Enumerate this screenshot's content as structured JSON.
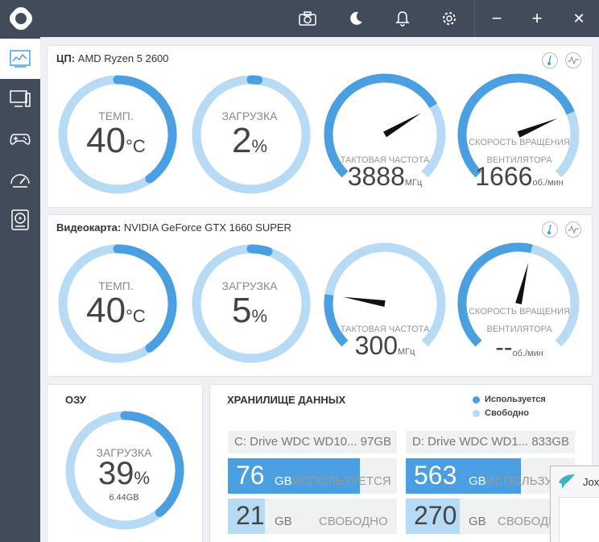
{
  "titlebar": {
    "icons": [
      "camera-icon",
      "moon-icon",
      "bell-icon",
      "gear-icon"
    ],
    "minimize": "−",
    "maximize": "+",
    "close": "✕"
  },
  "sidebar": {
    "items": [
      "dashboard-icon",
      "computer-icon",
      "gamepad-icon",
      "speedometer-icon",
      "disk-icon"
    ]
  },
  "cpu": {
    "title_prefix": "ЦП:",
    "title_name": "AMD Ryzen 5 2600",
    "temp": {
      "label": "ТЕМП.",
      "value": "40",
      "unit": "°C",
      "fraction": 0.4
    },
    "load": {
      "label": "ЗАГРУЗКА",
      "value": "2",
      "unit": "%",
      "fraction": 0.02
    },
    "clock": {
      "label": "ТАКТОВАЯ ЧАСТОТА",
      "value": "3888",
      "unit": "МГц",
      "fraction": 0.72
    },
    "fan": {
      "label_1": "СКОРОСТЬ ВРАЩЕНИЯ",
      "label_2": "ВЕНТИЛЯТОРА",
      "value": "1666",
      "unit": "об./мин",
      "fraction": 0.75
    }
  },
  "gpu": {
    "title_prefix": "Видеокарта:",
    "title_name": "NVIDIA GeForce GTX 1660 SUPER",
    "temp": {
      "label": "ТЕМП.",
      "value": "40",
      "unit": "°C",
      "fraction": 0.4
    },
    "load": {
      "label": "ЗАГРУЗКА",
      "value": "5",
      "unit": "%",
      "fraction": 0.05
    },
    "clock": {
      "label": "ТАКТОВАЯ ЧАСТОТА",
      "value": "300",
      "unit": "МГц",
      "fraction": 0.2
    },
    "fan": {
      "label_1": "СКОРОСТЬ ВРАЩЕНИЯ",
      "label_2": "ВЕНТИЛЯТОРА",
      "value": "--",
      "unit": "об./мин",
      "fraction": 0.55
    }
  },
  "ram": {
    "title": "ОЗУ",
    "load": {
      "label": "ЗАГРУЗКА",
      "value": "39",
      "unit": "%",
      "sub": "6.44GB",
      "fraction": 0.39
    }
  },
  "storage": {
    "title": "ХРАНИЛИЩЕ ДАННЫХ",
    "legend_used": "Используется",
    "legend_free": "Свободно",
    "drives": [
      {
        "name": "C: Drive WDC WD10... 97GB",
        "used": "76",
        "used_unit": "GB",
        "used_label": "ИСПОЛЬЗУЕТСЯ",
        "free": "21",
        "free_unit": "GB",
        "free_label": "СВОБОДНО",
        "used_fraction": 0.78,
        "free_fraction": 0.22
      },
      {
        "name": "D: Drive WDC WD1... 833GB",
        "used": "563",
        "used_unit": "GB",
        "used_label": "ИСПОЛЬЗУЕТСЯ",
        "free": "270",
        "free_unit": "GB",
        "free_label": "СВОБОДНО",
        "used_fraction": 0.68,
        "free_fraction": 0.32
      }
    ]
  },
  "colors": {
    "accent": "#4a9fe0",
    "track": "#b7dbf5",
    "titlebar": "#414b5a"
  },
  "popup": {
    "text": "Jox"
  }
}
